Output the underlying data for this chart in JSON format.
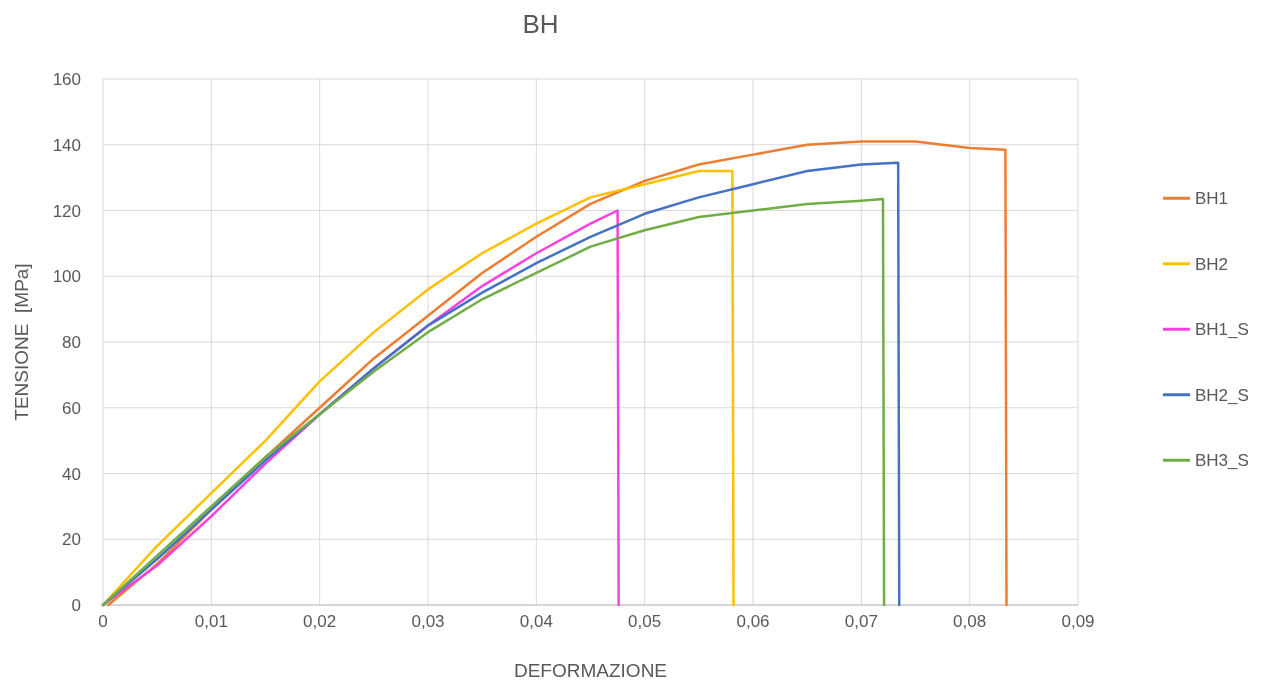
{
  "chart_data": {
    "type": "line",
    "title": "BH",
    "xlabel": "DEFORMAZIONE",
    "ylabel": "TENSIONE  [MPa]",
    "xlim": [
      0,
      0.09
    ],
    "ylim": [
      0,
      160
    ],
    "xticks": [
      0,
      {
        "value": 0.01,
        "label": "0,01"
      },
      {
        "value": 0.02,
        "label": "0,02"
      },
      {
        "value": 0.03,
        "label": "0,03"
      },
      {
        "value": 0.04,
        "label": "0,04"
      },
      {
        "value": 0.05,
        "label": "0,05"
      },
      {
        "value": 0.06,
        "label": "0,06"
      },
      {
        "value": 0.07,
        "label": "0,07"
      },
      {
        "value": 0.08,
        "label": "0,08"
      },
      {
        "value": 0.09,
        "label": "0,09"
      }
    ],
    "yticks": [
      0,
      20,
      40,
      60,
      80,
      100,
      120,
      140,
      160
    ],
    "grid": true,
    "legend": "right",
    "marker": "none",
    "line_style": "solid",
    "series": [
      {
        "name": "BH1",
        "color": "#ed7d31",
        "x": [
          0.0005,
          0.005,
          0.01,
          0.015,
          0.02,
          0.025,
          0.03,
          0.035,
          0.04,
          0.045,
          0.05,
          0.055,
          0.06,
          0.065,
          0.07,
          0.075,
          0.08,
          0.0833,
          0.0834
        ],
        "values": [
          0,
          12.5,
          29,
          45,
          60,
          75,
          88,
          101,
          112,
          122,
          129,
          134,
          137,
          140,
          141,
          141,
          139,
          138.5,
          0
        ]
      },
      {
        "name": "BH2",
        "color": "#ffc000",
        "x": [
          0,
          0.005,
          0.01,
          0.015,
          0.02,
          0.025,
          0.03,
          0.035,
          0.04,
          0.045,
          0.05,
          0.055,
          0.0581,
          0.0582
        ],
        "values": [
          0,
          18,
          34,
          50,
          68,
          83,
          96,
          107,
          116,
          124,
          128,
          132,
          132,
          0
        ]
      },
      {
        "name": "BH1_S",
        "color": "#f542e0",
        "x": [
          0,
          0.005,
          0.01,
          0.015,
          0.02,
          0.025,
          0.03,
          0.035,
          0.04,
          0.045,
          0.0475,
          0.0476
        ],
        "values": [
          0,
          12,
          27,
          43,
          58,
          72,
          85,
          97,
          107,
          116,
          120,
          0
        ]
      },
      {
        "name": "BH2_S",
        "color": "#4472c4",
        "x": [
          0,
          0.005,
          0.01,
          0.015,
          0.02,
          0.025,
          0.03,
          0.035,
          0.04,
          0.045,
          0.05,
          0.055,
          0.06,
          0.065,
          0.07,
          0.0734,
          0.0735
        ],
        "values": [
          0,
          14,
          29,
          44,
          58,
          72,
          85,
          95,
          104,
          112,
          119,
          124,
          128,
          132,
          134,
          134.5,
          0
        ]
      },
      {
        "name": "BH3_S",
        "color": "#70ad47",
        "x": [
          0,
          0.005,
          0.01,
          0.015,
          0.02,
          0.025,
          0.03,
          0.035,
          0.04,
          0.045,
          0.05,
          0.055,
          0.06,
          0.065,
          0.07,
          0.072,
          0.0721
        ],
        "values": [
          0,
          15,
          30,
          45,
          58,
          71,
          83,
          93,
          101,
          109,
          114,
          118,
          120,
          122,
          123,
          123.5,
          0
        ]
      }
    ]
  }
}
